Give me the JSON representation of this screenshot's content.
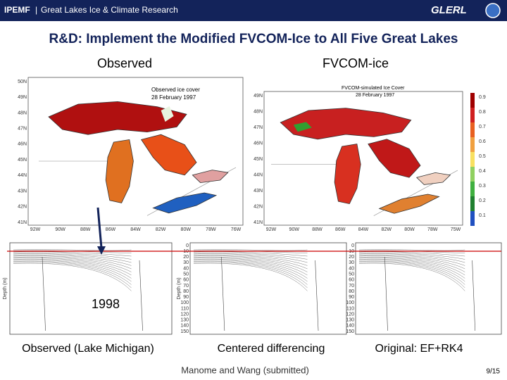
{
  "header": {
    "title": "IPEMF",
    "subtitle": "Great Lakes Ice & Climate Research",
    "logo": "GLERL"
  },
  "title": "R&D: Implement the Modified FVCOM-Ice to All Five Great Lakes",
  "maps": [
    {
      "label": "Observed",
      "inner_title": "Observed ice cover",
      "date": "28 February 1997",
      "lat_labels": [
        "50N",
        "49N",
        "48N",
        "47N",
        "46N",
        "45N",
        "44N",
        "43N",
        "42N",
        "41N"
      ],
      "lon_labels": [
        "92W",
        "90W",
        "88W",
        "86W",
        "84W",
        "82W",
        "80W",
        "78W",
        "76W"
      ]
    },
    {
      "label": "FVCOM-ice",
      "inner_title": "FVCOM-simulated Ice Cover",
      "date": "28 February 1997",
      "lat_labels": [
        "49N",
        "48N",
        "47N",
        "46N",
        "45N",
        "44N",
        "43N",
        "42N",
        "41N"
      ],
      "lon_labels": [
        "92W",
        "90W",
        "88W",
        "86W",
        "84W",
        "82W",
        "80W",
        "78W",
        "75W"
      ],
      "colorbar": [
        "0.9",
        "0.8",
        "0.7",
        "0.6",
        "0.5",
        "0.4",
        "0.3",
        "0.2",
        "0.1"
      ]
    }
  ],
  "panels": [
    {
      "caption": "Observed (Lake Michigan)",
      "axis_label": "Depth (m)"
    },
    {
      "caption": "Centered differencing",
      "axis_label": "Depth (m)"
    },
    {
      "caption": "Original: EF+RK4"
    }
  ],
  "depth_ticks": [
    "0",
    "10",
    "20",
    "30",
    "40",
    "50",
    "60",
    "70",
    "80",
    "90",
    "100",
    "110",
    "120",
    "130",
    "140",
    "150"
  ],
  "year": "1998",
  "citation": "Manome and Wang (submitted)",
  "page": "9/15"
}
